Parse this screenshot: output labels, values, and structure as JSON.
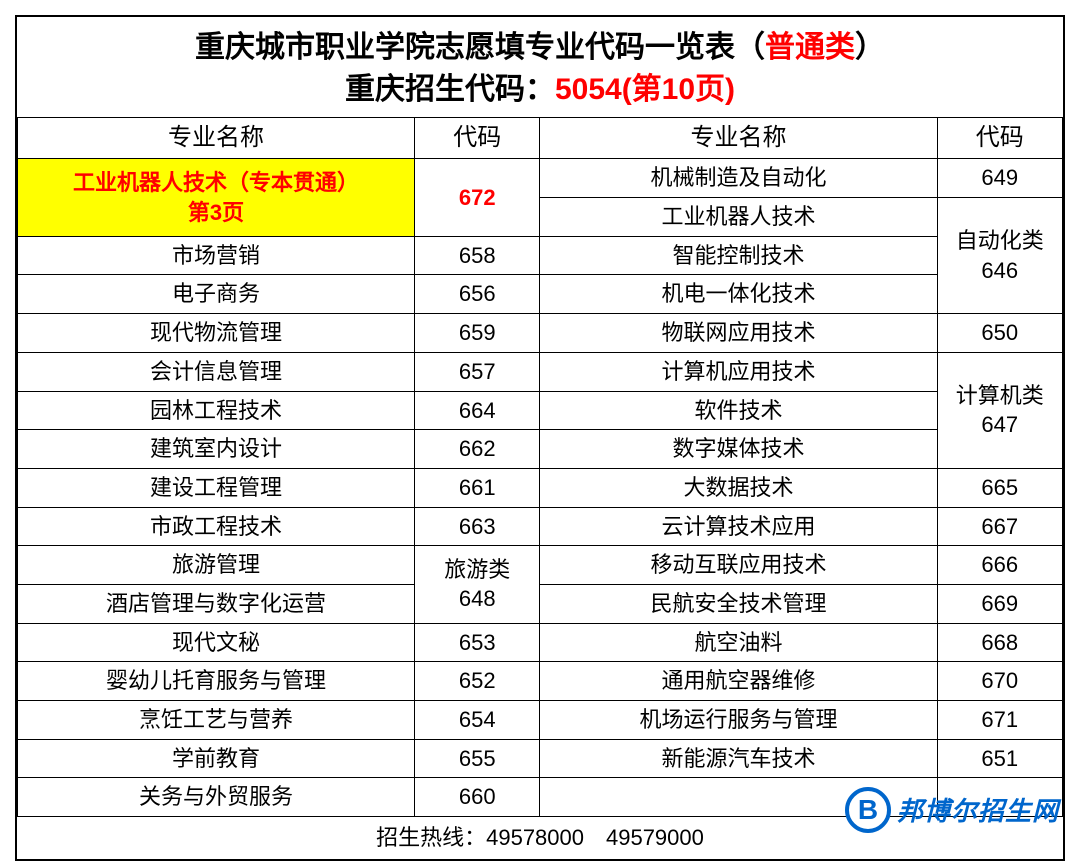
{
  "title": {
    "main_prefix": "重庆城市职业学院志愿填专业代码一览表（",
    "main_highlight": "普通类",
    "main_suffix": "）",
    "sub_prefix": "重庆招生代码：",
    "sub_highlight": "5054(第10页)"
  },
  "headers": {
    "name": "专业名称",
    "code": "代码"
  },
  "highlight": {
    "name_line1": "工业机器人技术（专本贯通）",
    "name_line2": "第3页",
    "code": "672"
  },
  "left_rows": [
    {
      "name": "市场营销",
      "code": "658"
    },
    {
      "name": "电子商务",
      "code": "656"
    },
    {
      "name": "现代物流管理",
      "code": "659"
    },
    {
      "name": "会计信息管理",
      "code": "657"
    },
    {
      "name": "园林工程技术",
      "code": "664"
    },
    {
      "name": "建筑室内设计",
      "code": "662"
    },
    {
      "name": "建设工程管理",
      "code": "661"
    },
    {
      "name": "市政工程技术",
      "code": "663"
    },
    {
      "name": "旅游管理"
    },
    {
      "name": "酒店管理与数字化运营"
    },
    {
      "name": "现代文秘",
      "code": "653"
    },
    {
      "name": "婴幼儿托育服务与管理",
      "code": "652"
    },
    {
      "name": "烹饪工艺与营养",
      "code": "654"
    },
    {
      "name": "学前教育",
      "code": "655"
    },
    {
      "name": "关务与外贸服务",
      "code": "660"
    }
  ],
  "left_merged": {
    "tourism_code_line1": "旅游类",
    "tourism_code_line2": "648"
  },
  "right_rows": [
    {
      "name": "机械制造及自动化",
      "code": "649"
    },
    {
      "name": "工业机器人技术"
    },
    {
      "name": "智能控制技术"
    },
    {
      "name": "机电一体化技术"
    },
    {
      "name": "物联网应用技术",
      "code": "650"
    },
    {
      "name": "计算机应用技术"
    },
    {
      "name": "软件技术"
    },
    {
      "name": "数字媒体技术"
    },
    {
      "name": "大数据技术",
      "code": "665"
    },
    {
      "name": "云计算技术应用",
      "code": "667"
    },
    {
      "name": "移动互联应用技术",
      "code": "666"
    },
    {
      "name": "民航安全技术管理",
      "code": "669"
    },
    {
      "name": "航空油料",
      "code": "668"
    },
    {
      "name": "通用航空器维修",
      "code": "670"
    },
    {
      "name": "机场运行服务与管理",
      "code": "671"
    },
    {
      "name": "新能源汽车技术",
      "code": "651"
    }
  ],
  "right_merged": {
    "auto_line1": "自动化类",
    "auto_line2": "646",
    "cs_line1": "计算机类",
    "cs_line2": "647"
  },
  "footer": {
    "hotline": "招生热线：49578000　49579000"
  },
  "watermark": {
    "icon": "B",
    "text": "邦博尔招生网"
  },
  "styling": {
    "highlight_bg": "#ffff00",
    "highlight_fg": "#ff0000",
    "border_color": "#000000",
    "watermark_color": "#0066cc",
    "font_size_title": 30,
    "font_size_cell": 22,
    "font_size_header": 24
  }
}
